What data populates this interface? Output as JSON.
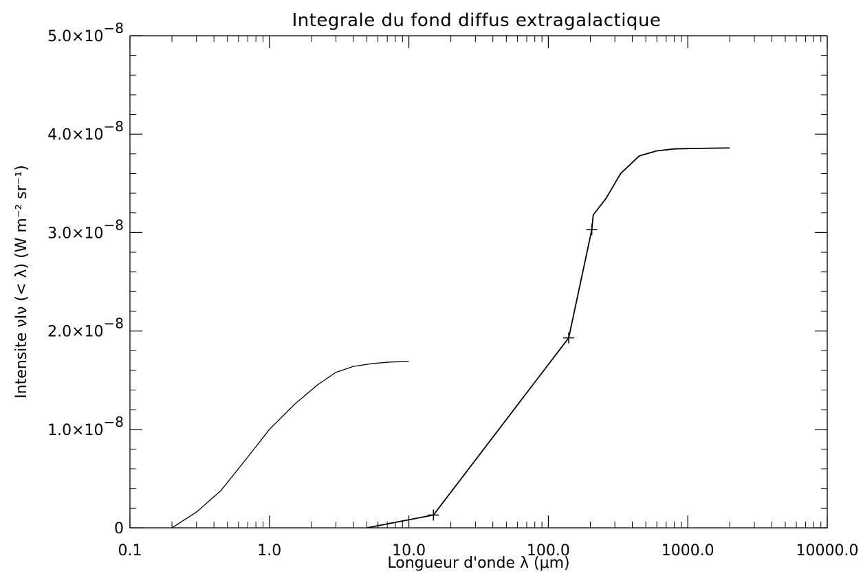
{
  "chart_data": {
    "type": "line",
    "title": "Integrale du fond diffus extragalactique",
    "xlabel": "Longueur d'onde λ (μm)",
    "ylabel": "Intensite νIν (< λ) (W m⁻² sr⁻¹)",
    "xscale": "log",
    "xlim": [
      0.1,
      10000
    ],
    "ylim": [
      0,
      5e-08
    ],
    "grid": false,
    "x_tick_labels": [
      "0.1",
      "1.0",
      "10.0",
      "100.0",
      "1000.0",
      "10000.0"
    ],
    "y_tick_labels": [
      {
        "mantissa": "0",
        "exponent": ""
      },
      {
        "mantissa": "1.0×10",
        "exponent": "−8"
      },
      {
        "mantissa": "2.0×10",
        "exponent": "−8"
      },
      {
        "mantissa": "3.0×10",
        "exponent": "−8"
      },
      {
        "mantissa": "4.0×10",
        "exponent": "−8"
      },
      {
        "mantissa": "5.0×10",
        "exponent": "−8"
      }
    ],
    "series": [
      {
        "marker": "none",
        "x": [
          0.2,
          0.3,
          0.45,
          0.7,
          1.0,
          1.5,
          2.2,
          3.0,
          4.0,
          5.5,
          7.5,
          10.0
        ],
        "y": [
          0.0,
          1.6e-09,
          3.8e-09,
          7.2e-09,
          1e-08,
          1.25e-08,
          1.45e-08,
          1.58e-08,
          1.64e-08,
          1.67e-08,
          1.685e-08,
          1.69e-08
        ]
      },
      {
        "marker": "none",
        "x": [
          5.0,
          15.0,
          140.0,
          205.0,
          210.0,
          260.0,
          330.0,
          450.0,
          600.0,
          800.0,
          1100.0,
          2000.0
        ],
        "y": [
          0.0,
          1.3e-09,
          1.93e-08,
          3.03e-08,
          3.18e-08,
          3.35e-08,
          3.6e-08,
          3.78e-08,
          3.83e-08,
          3.85e-08,
          3.855e-08,
          3.86e-08
        ]
      }
    ],
    "points": {
      "marker": "plus",
      "x": [
        15.0,
        140.0,
        205.0
      ],
      "y": [
        1.3e-09,
        1.93e-08,
        3.03e-08
      ]
    }
  }
}
